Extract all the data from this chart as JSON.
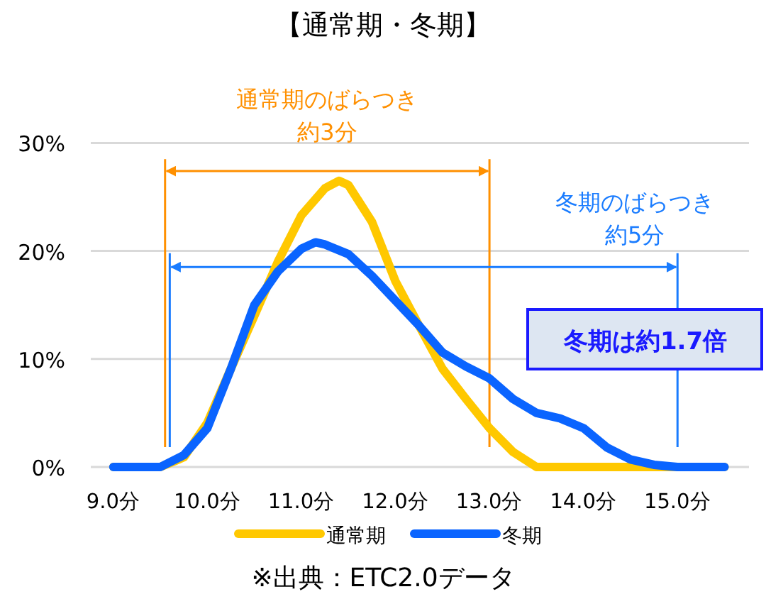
{
  "chart_data": {
    "type": "line",
    "title": "【通常期・冬期】",
    "xlim": [
      8.76,
      15.76
    ],
    "ylim": [
      0,
      30
    ],
    "xticks": [
      {
        "value": 9,
        "label": "9.0分"
      },
      {
        "value": 10,
        "label": "10.0分"
      },
      {
        "value": 11,
        "label": "11.0分"
      },
      {
        "value": 12,
        "label": "12.0分"
      },
      {
        "value": 13,
        "label": "13.0分"
      },
      {
        "value": 14,
        "label": "14.0分"
      },
      {
        "value": 15,
        "label": "15.0分"
      }
    ],
    "yticks": [
      {
        "value": 0,
        "label": "0%"
      },
      {
        "value": 10,
        "label": "10%"
      },
      {
        "value": 20,
        "label": "20%"
      },
      {
        "value": 30,
        "label": "30%"
      }
    ],
    "grid": "y",
    "legend": "bottom",
    "marker": "none",
    "line_style": "solid",
    "series": [
      {
        "name": "通常期",
        "color": "#ffc800",
        "x": [
          9.0,
          9.25,
          9.5,
          9.75,
          10.0,
          10.25,
          10.5,
          10.75,
          11.0,
          11.25,
          11.4,
          11.5,
          11.75,
          12.0,
          12.25,
          12.5,
          12.75,
          13.0,
          13.25,
          13.5,
          14.0,
          14.5,
          15.0,
          15.5
        ],
        "values": [
          0,
          0,
          0,
          0.9,
          4.1,
          9.1,
          14.0,
          19.0,
          23.3,
          25.8,
          26.5,
          26.1,
          22.7,
          17.2,
          13.1,
          9.1,
          6.3,
          3.6,
          1.4,
          0,
          0,
          0,
          0,
          0
        ]
      },
      {
        "name": "冬期",
        "color": "#0a64ff",
        "x": [
          9.0,
          9.25,
          9.5,
          9.75,
          10.0,
          10.25,
          10.5,
          10.75,
          11.0,
          11.15,
          11.25,
          11.5,
          11.75,
          12.0,
          12.25,
          12.5,
          12.75,
          13.0,
          13.25,
          13.5,
          13.75,
          14.0,
          14.25,
          14.5,
          14.75,
          15.0,
          15.5
        ],
        "values": [
          0,
          0,
          0,
          1.1,
          3.6,
          9.1,
          15.0,
          18.1,
          20.2,
          20.8,
          20.6,
          19.7,
          17.7,
          15.4,
          13.1,
          10.6,
          9.3,
          8.2,
          6.3,
          5.0,
          4.5,
          3.6,
          1.8,
          0.7,
          0.2,
          0,
          0
        ]
      }
    ],
    "ref_lines": [
      {
        "axis": "x",
        "value": 9.55,
        "color": "#ff9000"
      },
      {
        "axis": "x",
        "value": 13.0,
        "color": "#ff9000"
      },
      {
        "axis": "x",
        "value": 9.6,
        "color": "#1a7cff"
      },
      {
        "axis": "x",
        "value": 15.0,
        "color": "#1a7cff"
      }
    ],
    "annotations": [
      "通常期のばらつき",
      "約3分",
      "冬期のばらつき",
      "約5分",
      "冬期は約1.7倍",
      "※出典：ETC2.0データ"
    ]
  }
}
